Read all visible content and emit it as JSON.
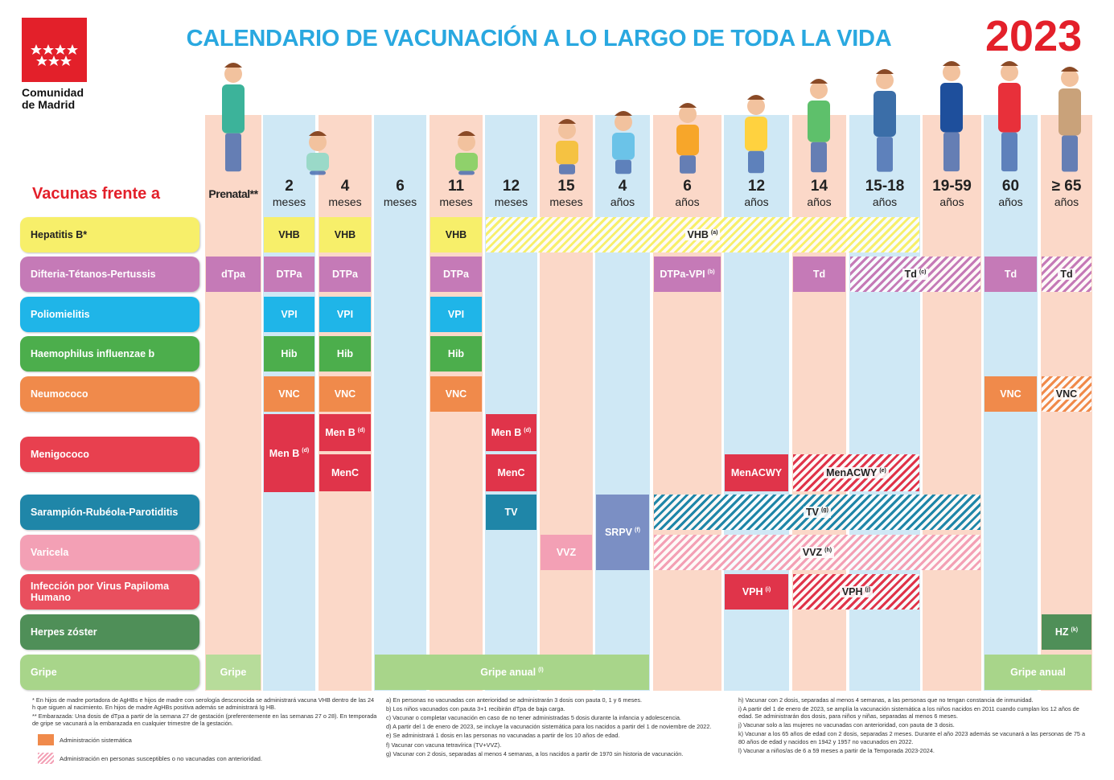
{
  "header": {
    "logo_lines": [
      "Comunidad",
      "de Madrid"
    ],
    "title": "CALENDARIO DE VACUNACIÓN A LO LARGO DE TODA LA VIDA",
    "year": "2023"
  },
  "row_header": "Vacunas frente a",
  "columns": [
    {
      "label": "Prenatal**"
    },
    {
      "label": "2",
      "unit": "meses"
    },
    {
      "label": "4",
      "unit": "meses"
    },
    {
      "label": "6",
      "unit": "meses"
    },
    {
      "label": "11",
      "unit": "meses"
    },
    {
      "label": "12",
      "unit": "meses"
    },
    {
      "label": "15",
      "unit": "meses"
    },
    {
      "label": "4",
      "unit": "años"
    },
    {
      "label": "6",
      "unit": "años"
    },
    {
      "label": "12",
      "unit": "años"
    },
    {
      "label": "14",
      "unit": "años"
    },
    {
      "label": "15-18",
      "unit": "años"
    },
    {
      "label": "19-59",
      "unit": "años"
    },
    {
      "label": "60",
      "unit": "años"
    },
    {
      "label": "≥ 65",
      "unit": "años"
    }
  ],
  "rows": [
    {
      "name": "Hepatitis B*",
      "doses": [
        {
          "label": "VHB"
        },
        {
          "label": "VHB"
        },
        {
          "label": "VHB"
        },
        {
          "label": "VHB",
          "note": "(a)"
        }
      ]
    },
    {
      "name": "Difteria-Tétanos-Pertussis",
      "doses": [
        {
          "label": "dTpa"
        },
        {
          "label": "DTPa"
        },
        {
          "label": "DTPa"
        },
        {
          "label": "DTPa"
        },
        {
          "label": "DTPa-VPI",
          "note": "(b)"
        },
        {
          "label": "Td"
        },
        {
          "label": "Td",
          "note": "(c)"
        },
        {
          "label": "Td"
        },
        {
          "label": "Td"
        }
      ]
    },
    {
      "name": "Poliomielitis",
      "doses": [
        {
          "label": "VPI"
        },
        {
          "label": "VPI"
        },
        {
          "label": "VPI"
        }
      ]
    },
    {
      "name": "Haemophilus influenzae b",
      "doses": [
        {
          "label": "Hib"
        },
        {
          "label": "Hib"
        },
        {
          "label": "Hib"
        }
      ]
    },
    {
      "name": "Neumococo",
      "doses": [
        {
          "label": "VNC"
        },
        {
          "label": "VNC"
        },
        {
          "label": "VNC"
        },
        {
          "label": "VNC"
        },
        {
          "label": "VNC"
        }
      ]
    },
    {
      "name": "Menigococo",
      "doses": [
        {
          "label": "Men B",
          "note": "(d)"
        },
        {
          "label": "Men B",
          "note": "(d)"
        },
        {
          "label": "MenC"
        },
        {
          "label": "Men B",
          "note": "(d)"
        },
        {
          "label": "MenC"
        },
        {
          "label": "MenACWY"
        },
        {
          "label": "MenACWY",
          "note": "(e)"
        }
      ]
    },
    {
      "name": "Sarampión-Rubéola-Parotiditis",
      "doses": [
        {
          "label": "TV"
        },
        {
          "label": "SRPV",
          "note": "(f)"
        },
        {
          "label": "TV",
          "note": "(g)"
        }
      ]
    },
    {
      "name": "Varicela",
      "doses": [
        {
          "label": "VVZ"
        },
        {
          "label": "VVZ",
          "note": "(h)"
        }
      ]
    },
    {
      "name": "Infección por Virus Papiloma Humano",
      "doses": [
        {
          "label": "VPH",
          "note": "(i)"
        },
        {
          "label": "VPH",
          "note": "(j)"
        }
      ]
    },
    {
      "name": "Herpes zóster",
      "doses": [
        {
          "label": "HZ",
          "note": "(k)"
        }
      ]
    },
    {
      "name": "Gripe",
      "doses": [
        {
          "label": "Gripe"
        },
        {
          "label": "Gripe anual",
          "note": "(l)"
        },
        {
          "label": "Gripe anual"
        }
      ]
    }
  ],
  "footnotes": {
    "left": [
      "* En hijos de madre portadora de AgHBs e hijos de madre con serología desconocida se administrará vacuna VHB dentro de las 24 h que siguen al nacimiento. En hijos de madre AgHBs positiva además se administrará Ig HB.",
      "** Embarazada: Una dosis de dTpa a partir de la semana 27 de gestación (preferentemente en las semanas 27 o 28). En temporada de gripe se vacunará a la embarazada en cualquier trimestre de la gestación."
    ],
    "middle": [
      "a) En personas no vacunadas con anterioridad se administrarán 3 dosis con pauta 0, 1 y 6 meses.",
      "b) Los niños vacunados con pauta 3+1 recibirán dTpa de baja carga.",
      "c) Vacunar o completar vacunación en caso de no tener administradas 5 dosis durante la infancia y adolescencia.",
      "d) A partir del 1 de enero de 2023, se incluye la vacunación sistemática para los nacidos a partir del 1 de noviembre de 2022.",
      "e) Se administrará 1 dosis en las personas no vacunadas a partir de los 10 años de edad.",
      "f) Vacunar con vacuna tetravírica (TV+VVZ).",
      "g) Vacunar con 2 dosis, separadas al menos 4 semanas, a los nacidos a partir de 1970 sin historia de vacunación."
    ],
    "right": [
      "h) Vacunar con 2 dosis, separadas al menos 4 semanas, a las personas que no tengan constancia de inmunidad.",
      "i) A partir del 1 de enero de 2023, se amplía la vacunación sistemática a los niños nacidos en 2011 cuando cumplan los 12 años de edad. Se administrarán dos dosis, para niños y niñas, separadas al menos 6 meses.",
      "j) Vacunar solo a las mujeres no vacunadas con anterioridad, con pauta de 3 dosis.",
      "k) Vacunar a los 65 años de edad con 2 dosis, separadas 2 meses. Durante el año 2023 además se vacunará a las personas de 75 a 80 años de edad y nacidos en 1942 y 1957 no vacunados en 2022.",
      "l) Vacunar a niños/as de 6 a 59 meses a partir de la Temporada 2023-2024."
    ]
  },
  "legend": [
    "Administración sistemática",
    "Administración en personas susceptibles o no vacunadas con anterioridad."
  ]
}
